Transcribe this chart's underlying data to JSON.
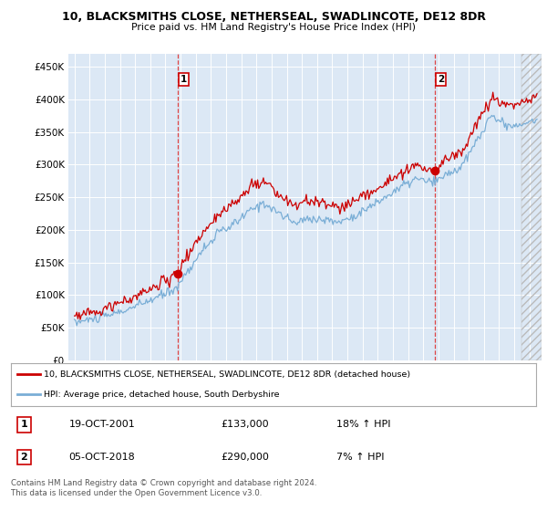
{
  "title": "10, BLACKSMITHS CLOSE, NETHERSEAL, SWADLINCOTE, DE12 8DR",
  "subtitle": "Price paid vs. HM Land Registry's House Price Index (HPI)",
  "legend_line1": "10, BLACKSMITHS CLOSE, NETHERSEAL, SWADLINCOTE, DE12 8DR (detached house)",
  "legend_line2": "HPI: Average price, detached house, South Derbyshire",
  "annotation1_date": "19-OCT-2001",
  "annotation1_price": "£133,000",
  "annotation1_hpi": "18% ↑ HPI",
  "annotation2_date": "05-OCT-2018",
  "annotation2_price": "£290,000",
  "annotation2_hpi": "7% ↑ HPI",
  "footer": "Contains HM Land Registry data © Crown copyright and database right 2024.\nThis data is licensed under the Open Government Licence v3.0.",
  "line_color_red": "#cc0000",
  "line_color_blue": "#7aaed6",
  "vline_color": "#dd4444",
  "background_color": "#ffffff",
  "plot_bg_color": "#dce8f5",
  "grid_color": "#ffffff",
  "ylim": [
    0,
    470000
  ],
  "yticks": [
    0,
    50000,
    100000,
    150000,
    200000,
    250000,
    300000,
    350000,
    400000,
    450000
  ],
  "xlim_left": 1994.6,
  "xlim_right": 2025.8,
  "hatch_start": 2024.5,
  "sale1_x": 2001.8,
  "sale1_y": 133000,
  "sale2_x": 2018.75,
  "sale2_y": 290000
}
